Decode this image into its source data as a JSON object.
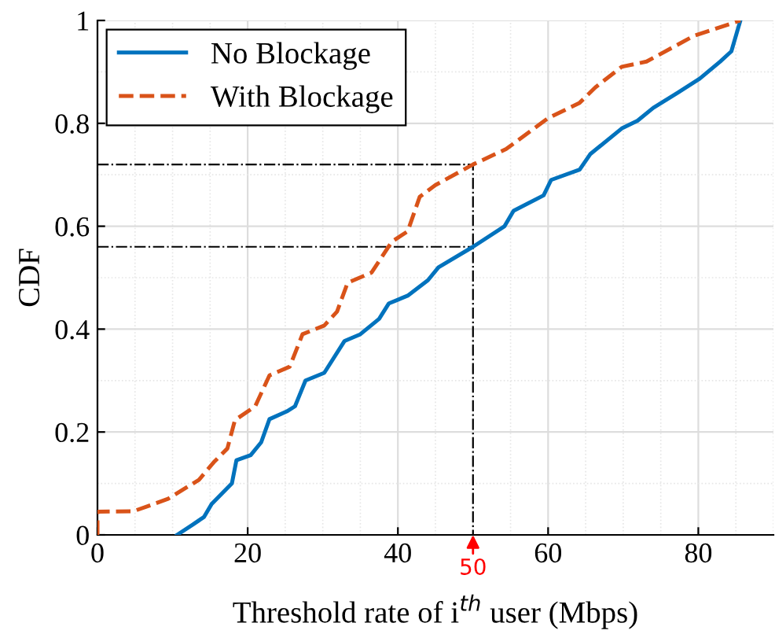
{
  "chart_data": {
    "type": "line",
    "xlabel": "Threshold rate of i$^{th}$ user (Mbps)",
    "ylabel": "CDF",
    "xlim": [
      0,
      90
    ],
    "xticks": [
      0,
      20,
      40,
      60,
      80
    ],
    "ylim": [
      0,
      1
    ],
    "yticks": [
      0,
      0.2,
      0.4,
      0.6,
      0.8,
      1
    ],
    "grid": true,
    "legend": "top left",
    "marker": "none",
    "series": [
      {
        "name": "No Blockage",
        "color": "#0072bd",
        "line_style": "solid",
        "x": [
          10.6,
          12.7,
          14.2,
          15.2,
          17.9,
          18.5,
          20.4,
          21.8,
          22.9,
          25.2,
          26.3,
          27.7,
          30.2,
          32.9,
          35,
          37.5,
          38.8,
          41.3,
          44,
          45.4,
          50,
          54.2,
          55.4,
          59.4,
          60.4,
          64.2,
          65.6,
          69.8,
          71.9,
          74,
          77.3,
          80.2,
          82.9,
          84.4,
          85.6
        ],
        "values": [
          0,
          0.02,
          0.035,
          0.06,
          0.1,
          0.145,
          0.155,
          0.18,
          0.225,
          0.24,
          0.25,
          0.3,
          0.315,
          0.377,
          0.39,
          0.42,
          0.45,
          0.465,
          0.495,
          0.52,
          0.56,
          0.6,
          0.63,
          0.66,
          0.69,
          0.71,
          0.74,
          0.79,
          0.805,
          0.83,
          0.86,
          0.887,
          0.92,
          0.94,
          1.0
        ]
      },
      {
        "name": "With Blockage",
        "color": "#d95319",
        "line_style": "dashed",
        "x": [
          0,
          0,
          4.8,
          9.4,
          13.5,
          15.6,
          17.3,
          18.3,
          21,
          22.9,
          25.6,
          27.3,
          30.2,
          31.9,
          33.3,
          36.5,
          39.2,
          41.3,
          42.9,
          45,
          50,
          54.4,
          60,
          64.2,
          66.3,
          69.8,
          73.1,
          79.4,
          85.6
        ],
        "values": [
          0,
          0.045,
          0.046,
          0.07,
          0.107,
          0.143,
          0.168,
          0.223,
          0.25,
          0.31,
          0.327,
          0.39,
          0.407,
          0.434,
          0.49,
          0.51,
          0.57,
          0.59,
          0.657,
          0.68,
          0.72,
          0.75,
          0.81,
          0.84,
          0.87,
          0.91,
          0.92,
          0.97,
          1.0
        ]
      },
      {
        "color": "#000000",
        "line_style": "dashdot",
        "x": [
          0,
          50,
          50
        ],
        "values": [
          0.72,
          0.72,
          0
        ]
      },
      {
        "color": "#000000",
        "line_style": "dashdot",
        "x": [
          0,
          50
        ],
        "values": [
          0.56,
          0.56
        ]
      }
    ],
    "annotations": [
      {
        "text": "50",
        "x": 50,
        "y": 0
      }
    ]
  }
}
